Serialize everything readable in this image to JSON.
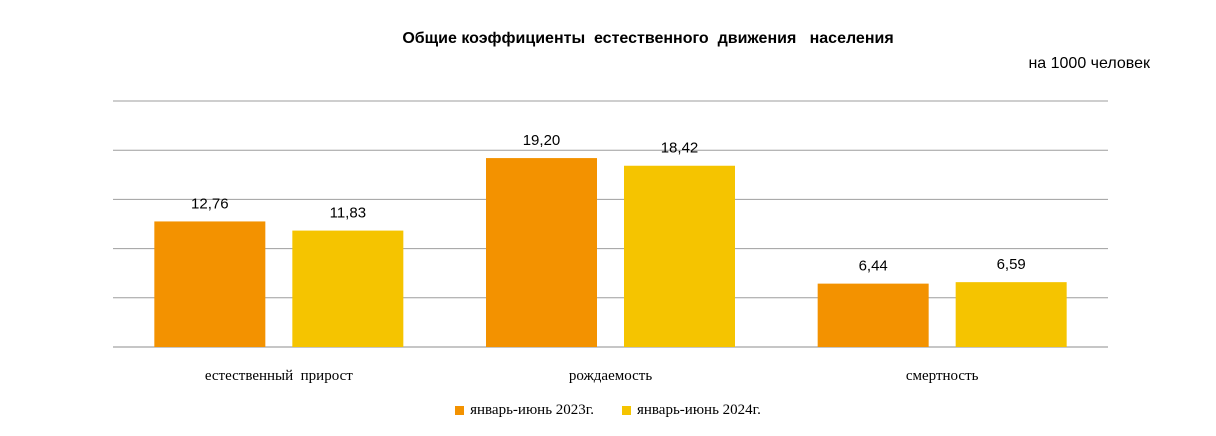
{
  "chart_data": {
    "type": "bar",
    "title": "Общие коэффициенты  естественного  движения   населения",
    "unit_label": "на 1000 человек",
    "categories": [
      "естественный  прирост",
      "рождаемость",
      "смертность"
    ],
    "series": [
      {
        "name": "январь-июнь  2023г.",
        "values": [
          12.76,
          19.2,
          6.44
        ],
        "labels": [
          "12,76",
          "19,20",
          "6,44"
        ],
        "color": "#F39200"
      },
      {
        "name": "январь-июнь  2024г.",
        "values": [
          11.83,
          18.42,
          6.59
        ],
        "labels": [
          "11,83",
          "18,42",
          "6,59"
        ],
        "color": "#F5C400"
      }
    ],
    "ylim": [
      0,
      25
    ],
    "grid": true,
    "legend_position": "bottom"
  }
}
